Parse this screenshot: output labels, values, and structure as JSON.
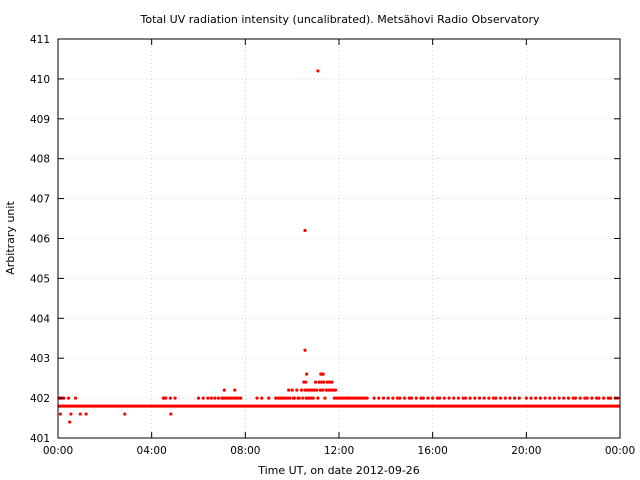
{
  "chart_data": {
    "type": "scatter",
    "title": "Total UV radiation intensity (uncalibrated). Metsähovi Radio Observatory",
    "xlabel": "Time UT, on date 2012-09-26",
    "ylabel": "Arbitrary unit",
    "x_unit": "hours UT",
    "xlim": [
      0,
      24
    ],
    "ylim": [
      401,
      411
    ],
    "grid": true,
    "marker_color": "#ff0000",
    "x_ticks": [
      {
        "value": 0,
        "label": "00:00"
      },
      {
        "value": 4,
        "label": "04:00"
      },
      {
        "value": 8,
        "label": "08:00"
      },
      {
        "value": 12,
        "label": "12:00"
      },
      {
        "value": 16,
        "label": "16:00"
      },
      {
        "value": 20,
        "label": "20:00"
      },
      {
        "value": 24,
        "label": "00:00"
      }
    ],
    "y_ticks": [
      401,
      402,
      403,
      404,
      405,
      406,
      407,
      408,
      409,
      410,
      411
    ],
    "series": [
      {
        "baseline_segments": [
          {
            "y": 401.8,
            "x_from": 0.0,
            "x_to": 24.0
          }
        ],
        "points": [
          [
            0.05,
            402.0
          ],
          [
            0.1,
            401.6
          ],
          [
            0.12,
            402.0
          ],
          [
            0.15,
            402.0
          ],
          [
            0.25,
            402.0
          ],
          [
            0.45,
            402.0
          ],
          [
            0.5,
            401.4
          ],
          [
            0.55,
            401.6
          ],
          [
            0.75,
            402.0
          ],
          [
            0.95,
            401.6
          ],
          [
            1.2,
            401.6
          ],
          [
            2.85,
            401.6
          ],
          [
            4.5,
            402.0
          ],
          [
            4.55,
            402.0
          ],
          [
            4.6,
            402.0
          ],
          [
            4.8,
            402.0
          ],
          [
            4.82,
            401.6
          ],
          [
            5.0,
            402.0
          ],
          [
            6.0,
            402.0
          ],
          [
            6.2,
            402.0
          ],
          [
            6.4,
            402.0
          ],
          [
            6.55,
            402.0
          ],
          [
            6.7,
            402.0
          ],
          [
            6.85,
            402.0
          ],
          [
            7.0,
            402.0
          ],
          [
            7.05,
            402.0
          ],
          [
            7.1,
            402.2
          ],
          [
            7.15,
            402.0
          ],
          [
            7.2,
            402.0
          ],
          [
            7.3,
            402.0
          ],
          [
            7.4,
            402.0
          ],
          [
            7.5,
            402.0
          ],
          [
            7.55,
            402.2
          ],
          [
            7.6,
            402.0
          ],
          [
            7.7,
            402.0
          ],
          [
            7.8,
            402.0
          ],
          [
            8.5,
            402.0
          ],
          [
            8.7,
            402.0
          ],
          [
            9.0,
            402.0
          ],
          [
            9.3,
            402.0
          ],
          [
            9.4,
            402.0
          ],
          [
            9.5,
            402.0
          ],
          [
            9.6,
            402.0
          ],
          [
            9.7,
            402.0
          ],
          [
            9.8,
            402.0
          ],
          [
            9.85,
            402.2
          ],
          [
            9.9,
            402.0
          ],
          [
            10.0,
            402.2
          ],
          [
            10.05,
            402.0
          ],
          [
            10.1,
            402.0
          ],
          [
            10.2,
            402.2
          ],
          [
            10.25,
            402.0
          ],
          [
            10.3,
            402.0
          ],
          [
            10.4,
            402.2
          ],
          [
            10.45,
            402.0
          ],
          [
            10.5,
            402.4
          ],
          [
            10.55,
            402.2
          ],
          [
            10.58,
            402.4
          ],
          [
            10.6,
            402.0
          ],
          [
            10.62,
            402.6
          ],
          [
            10.65,
            402.2
          ],
          [
            10.7,
            402.0
          ],
          [
            10.75,
            402.2
          ],
          [
            10.8,
            402.0
          ],
          [
            10.85,
            402.2
          ],
          [
            10.9,
            402.0
          ],
          [
            10.95,
            402.2
          ],
          [
            11.0,
            402.4
          ],
          [
            11.05,
            402.2
          ],
          [
            11.1,
            402.0
          ],
          [
            11.15,
            402.4
          ],
          [
            11.2,
            402.2
          ],
          [
            11.22,
            402.6
          ],
          [
            11.25,
            402.4
          ],
          [
            11.28,
            402.6
          ],
          [
            11.3,
            402.2
          ],
          [
            11.32,
            402.6
          ],
          [
            11.35,
            402.4
          ],
          [
            11.4,
            402.0
          ],
          [
            11.45,
            402.2
          ],
          [
            11.5,
            402.4
          ],
          [
            11.55,
            402.2
          ],
          [
            11.6,
            402.4
          ],
          [
            11.65,
            402.2
          ],
          [
            11.7,
            402.4
          ],
          [
            11.75,
            402.2
          ],
          [
            11.8,
            402.0
          ],
          [
            11.85,
            402.2
          ],
          [
            11.9,
            402.0
          ],
          [
            12.0,
            402.0
          ],
          [
            12.1,
            402.0
          ],
          [
            12.2,
            402.0
          ],
          [
            12.3,
            402.0
          ],
          [
            12.4,
            402.0
          ],
          [
            12.5,
            402.0
          ],
          [
            12.6,
            402.0
          ],
          [
            12.7,
            402.0
          ],
          [
            12.8,
            402.0
          ],
          [
            12.9,
            402.0
          ],
          [
            13.0,
            402.0
          ],
          [
            13.1,
            402.0
          ],
          [
            13.2,
            402.0
          ],
          [
            10.55,
            403.2
          ],
          [
            10.55,
            406.2
          ],
          [
            11.1,
            410.2
          ],
          [
            13.5,
            402.0
          ],
          [
            13.7,
            402.0
          ],
          [
            13.9,
            402.0
          ],
          [
            14.1,
            402.0
          ],
          [
            14.3,
            402.0
          ],
          [
            14.5,
            402.0
          ],
          [
            14.6,
            402.0
          ],
          [
            14.8,
            402.0
          ],
          [
            15.0,
            402.0
          ],
          [
            15.1,
            402.0
          ],
          [
            15.3,
            402.0
          ],
          [
            15.5,
            402.0
          ],
          [
            15.6,
            402.0
          ],
          [
            15.8,
            402.0
          ],
          [
            16.0,
            402.0
          ],
          [
            16.2,
            402.0
          ],
          [
            16.3,
            402.0
          ],
          [
            16.5,
            402.0
          ],
          [
            16.7,
            402.0
          ],
          [
            16.9,
            402.0
          ],
          [
            17.1,
            402.0
          ],
          [
            17.3,
            402.0
          ],
          [
            17.4,
            402.0
          ],
          [
            17.6,
            402.0
          ],
          [
            17.8,
            402.0
          ],
          [
            18.0,
            402.0
          ],
          [
            18.2,
            402.0
          ],
          [
            18.4,
            402.0
          ],
          [
            18.6,
            402.0
          ],
          [
            18.7,
            402.0
          ],
          [
            18.9,
            402.0
          ],
          [
            19.1,
            402.0
          ],
          [
            19.3,
            402.0
          ],
          [
            19.5,
            402.0
          ],
          [
            19.7,
            402.0
          ],
          [
            20.0,
            402.0
          ],
          [
            20.2,
            402.0
          ],
          [
            20.4,
            402.0
          ],
          [
            20.6,
            402.0
          ],
          [
            20.8,
            402.0
          ],
          [
            21.0,
            402.0
          ],
          [
            21.2,
            402.0
          ],
          [
            21.4,
            402.0
          ],
          [
            21.6,
            402.0
          ],
          [
            21.8,
            402.0
          ],
          [
            22.0,
            402.0
          ],
          [
            22.1,
            402.0
          ],
          [
            22.3,
            402.0
          ],
          [
            22.5,
            402.0
          ],
          [
            22.6,
            402.0
          ],
          [
            22.8,
            402.0
          ],
          [
            23.0,
            402.0
          ],
          [
            23.1,
            402.0
          ],
          [
            23.3,
            402.0
          ],
          [
            23.5,
            402.0
          ],
          [
            23.6,
            402.0
          ],
          [
            23.8,
            402.0
          ],
          [
            23.9,
            402.0
          ]
        ]
      }
    ]
  }
}
